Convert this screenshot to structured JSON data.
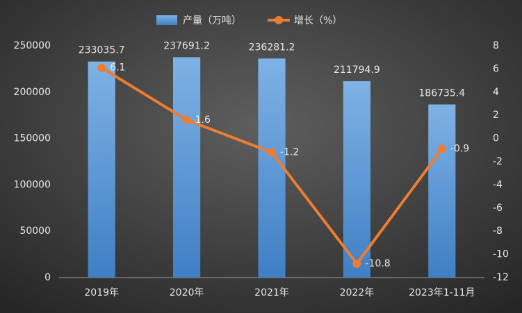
{
  "chart_data": {
    "type": "bar",
    "categories": [
      "2019年",
      "2020年",
      "2021年",
      "2022年",
      "2023年1-11月"
    ],
    "series": [
      {
        "name": "产量（万吨）",
        "type": "bar",
        "color": "#5b9bd5",
        "values": [
          233035.7,
          237691.2,
          236281.2,
          211794.9,
          186735.4
        ]
      },
      {
        "name": "增长（%）",
        "type": "line",
        "axis": "y2",
        "color": "#ed7d31",
        "values": [
          6.1,
          1.6,
          -1.2,
          -10.8,
          -0.9
        ]
      }
    ],
    "ylim": [
      0,
      250000
    ],
    "yticks": [
      0,
      50000,
      100000,
      150000,
      200000,
      250000
    ],
    "y2lim": [
      -12,
      8
    ],
    "y2ticks": [
      -12,
      -10,
      -8,
      -6,
      -4,
      -2,
      0,
      2,
      4,
      6,
      8
    ],
    "grid": false
  }
}
